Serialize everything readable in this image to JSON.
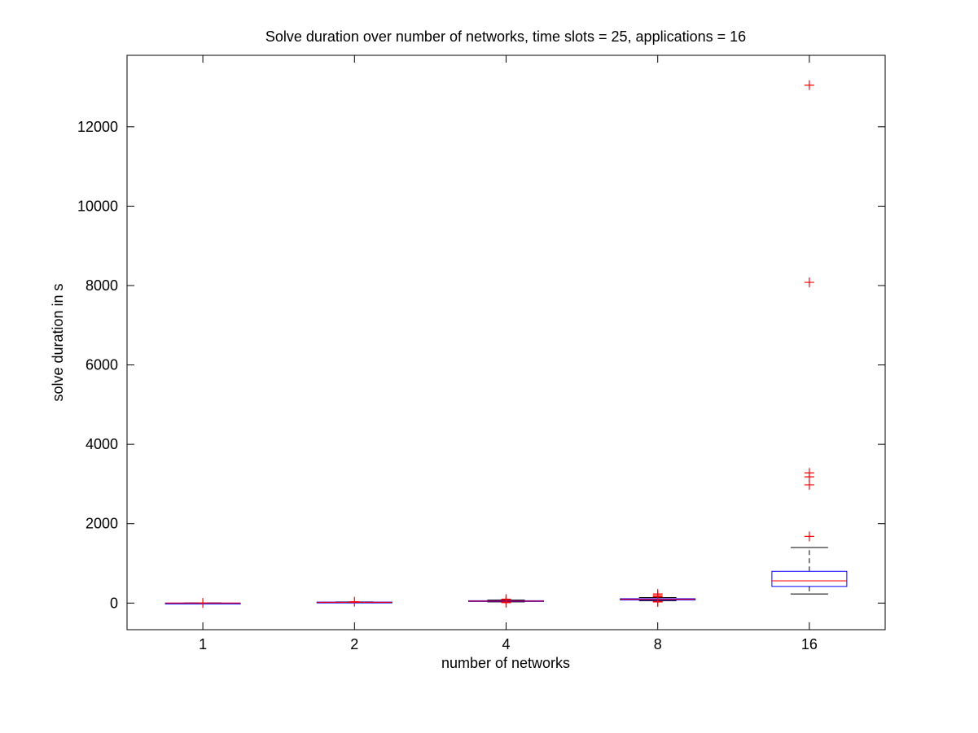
{
  "chart_data": {
    "type": "box",
    "title": "Solve duration over number of networks, time slots = 25, applications = 16",
    "xlabel": "number of networks",
    "ylabel": "solve duration in s",
    "categories": [
      "1",
      "2",
      "4",
      "8",
      "16"
    ],
    "ylim": [
      -670,
      13800
    ],
    "yticks": [
      0,
      2000,
      4000,
      6000,
      8000,
      10000,
      12000
    ],
    "grid": false,
    "colors": {
      "box": "#0000ff",
      "median": "#ff0000",
      "whisker": "#000000",
      "outlier": "#ff0000"
    },
    "boxes": [
      {
        "category": "1",
        "whisker_low": 0,
        "q1": 0,
        "median": 0,
        "q3": 0,
        "whisker_high": 0,
        "outliers": [
          5
        ]
      },
      {
        "category": "2",
        "whisker_low": 10,
        "q1": 15,
        "median": 20,
        "q3": 25,
        "whisker_high": 30,
        "outliers": [
          35
        ]
      },
      {
        "category": "4",
        "whisker_low": 30,
        "q1": 40,
        "median": 50,
        "q3": 60,
        "whisker_high": 75,
        "outliers": [
          10,
          20,
          90,
          100
        ]
      },
      {
        "category": "8",
        "whisker_low": 60,
        "q1": 80,
        "median": 95,
        "q3": 110,
        "whisker_high": 140,
        "outliers": [
          30,
          40,
          160,
          190,
          230
        ]
      },
      {
        "category": "16",
        "whisker_low": 230,
        "q1": 420,
        "median": 560,
        "q3": 800,
        "whisker_high": 1400,
        "outliers": [
          1680,
          2980,
          3180,
          3280,
          8080,
          13050
        ]
      }
    ]
  }
}
